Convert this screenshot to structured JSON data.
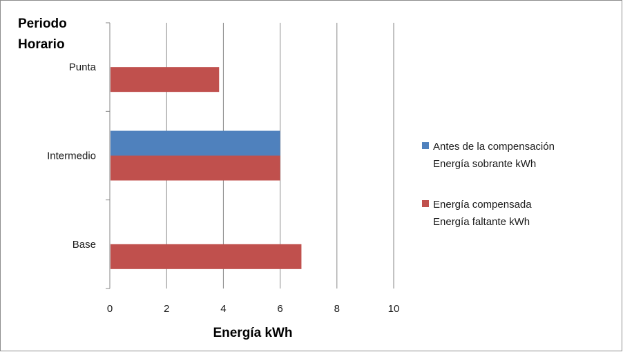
{
  "chart_data": {
    "type": "bar",
    "orientation": "horizontal",
    "categories": [
      "Punta",
      "Intermedio",
      "Base"
    ],
    "series": [
      {
        "name": "Antes de la compensación Energía sobrante kWh",
        "name_lines": [
          "Antes de la compensación",
          "Energía sobrante kWh"
        ],
        "color": "#4f81bd",
        "values": [
          0,
          6,
          0
        ]
      },
      {
        "name": "Energía compensada Energía faltante kWh",
        "name_lines": [
          "Energía compensada",
          "Energía faltante kWh"
        ],
        "color": "#c0504d",
        "values": [
          3.85,
          6,
          6.75
        ]
      }
    ],
    "xlabel": "Energía kWh",
    "ylabel_lines": [
      "Periodo",
      "Horario"
    ],
    "xlim": [
      0,
      10
    ],
    "x_ticks": [
      "0",
      "2",
      "4",
      "6",
      "8",
      "10"
    ],
    "grid": "vertical",
    "legend_position": "right"
  }
}
